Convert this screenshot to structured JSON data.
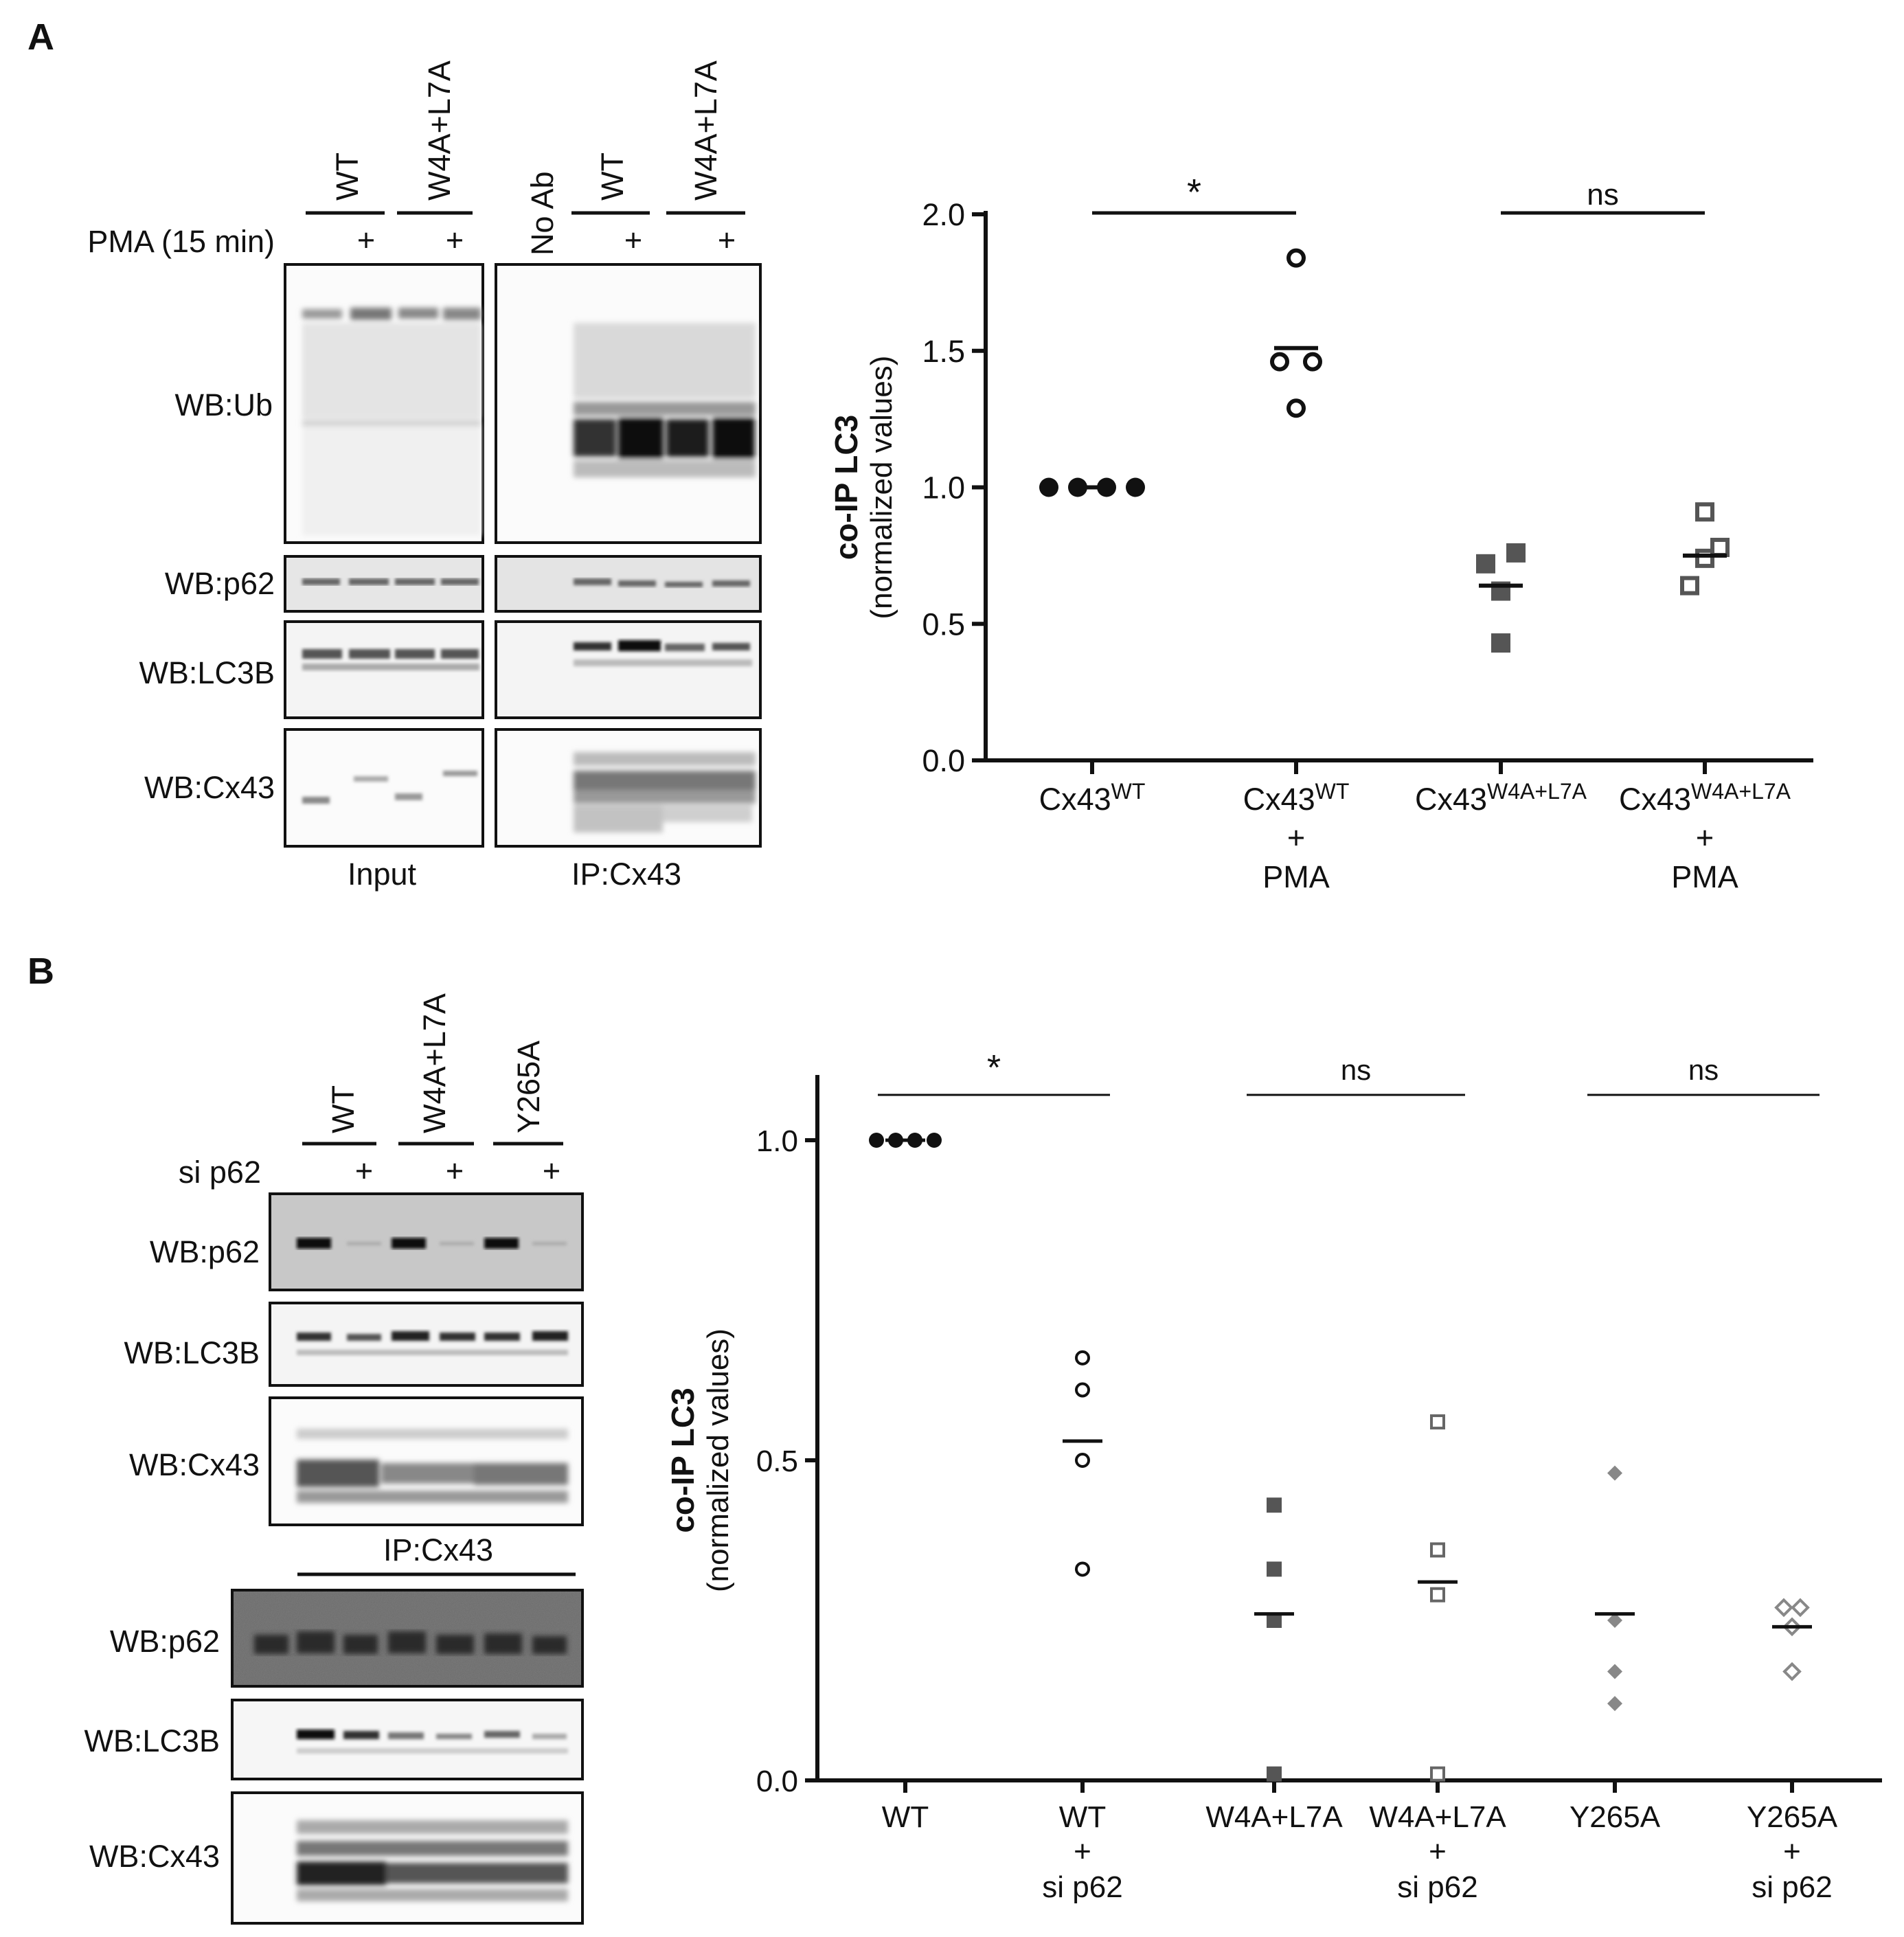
{
  "panelA": {
    "letter": "A",
    "blot": {
      "lanes": [
        "WT",
        "W4A+L7A",
        "No Ab",
        "WT",
        "W4A+L7A"
      ],
      "treatment": "PMA (15 min)",
      "plus": "+",
      "rows": [
        "WB:Ub",
        "WB:p62",
        "WB:LC3B",
        "WB:Cx43"
      ],
      "bottom": [
        "Input",
        "IP:Cx43"
      ]
    },
    "chart_data": {
      "type": "scatter",
      "ylabel": "co-IP LC3",
      "ylabel_sub": "(normalized values)",
      "ylim": [
        0,
        2.0
      ],
      "yticks": [
        "0.0",
        "0.5",
        "1.0",
        "1.5",
        "2.0"
      ],
      "categories": [
        {
          "base": "Cx43",
          "sup": "WT",
          "l2": "",
          "l3": ""
        },
        {
          "base": "Cx43",
          "sup": "WT",
          "l2": "+",
          "l3": "PMA"
        },
        {
          "base": "Cx43",
          "sup": "W4A+L7A",
          "l2": "",
          "l3": ""
        },
        {
          "base": "Cx43",
          "sup": "W4A+L7A",
          "l2": "+",
          "l3": "PMA"
        }
      ],
      "series": [
        {
          "values": [
            1.0,
            1.0,
            1.0,
            1.0
          ],
          "mean": 1.0,
          "marker": "filled-circle",
          "color": "#111111"
        },
        {
          "values": [
            1.84,
            1.46,
            1.46,
            1.29
          ],
          "mean": 1.51,
          "marker": "open-circle",
          "color": "#111111"
        },
        {
          "values": [
            0.76,
            0.72,
            0.62,
            0.43
          ],
          "mean": 0.64,
          "marker": "filled-square",
          "color": "#555555"
        },
        {
          "values": [
            0.91,
            0.78,
            0.74,
            0.64
          ],
          "mean": 0.75,
          "marker": "open-square",
          "color": "#555555"
        }
      ],
      "significance": [
        {
          "from": 0,
          "to": 1,
          "label": "*"
        },
        {
          "from": 2,
          "to": 3,
          "label": "ns"
        }
      ]
    }
  },
  "panelB": {
    "letter": "B",
    "blot": {
      "lanes": [
        "WT",
        "W4A+L7A",
        "Y265A"
      ],
      "treatment": "si p62",
      "plus": "+",
      "rows_top": [
        "WB:p62",
        "WB:LC3B",
        "WB:Cx43"
      ],
      "ip_label": "IP:Cx43",
      "rows_bottom": [
        "WB:p62",
        "WB:LC3B",
        "WB:Cx43"
      ]
    },
    "chart_data": {
      "type": "scatter",
      "ylabel": "co-IP LC3",
      "ylabel_sub": "(normalized values)",
      "ylim": [
        0,
        1.0
      ],
      "yticks": [
        "0.0",
        "0.5",
        "1.0"
      ],
      "categories": [
        {
          "l1": "WT",
          "l2": "",
          "l3": ""
        },
        {
          "l1": "WT",
          "l2": "+",
          "l3": "si p62"
        },
        {
          "l1": "W4A+L7A",
          "l2": "",
          "l3": ""
        },
        {
          "l1": "W4A+L7A",
          "l2": "+",
          "l3": "si p62"
        },
        {
          "l1": "Y265A",
          "l2": "",
          "l3": ""
        },
        {
          "l1": "Y265A",
          "l2": "+",
          "l3": "si p62"
        }
      ],
      "series": [
        {
          "values": [
            1.0,
            1.0,
            1.0,
            1.0
          ],
          "mean": 1.0,
          "marker": "filled-circle",
          "color": "#111111"
        },
        {
          "values": [
            0.66,
            0.61,
            0.5,
            0.33
          ],
          "mean": 0.53,
          "marker": "open-circle",
          "color": "#111111"
        },
        {
          "values": [
            0.43,
            0.33,
            0.25,
            0.01
          ],
          "mean": 0.26,
          "marker": "filled-square",
          "color": "#555555"
        },
        {
          "values": [
            0.56,
            0.36,
            0.29,
            0.01
          ],
          "mean": 0.31,
          "marker": "open-square",
          "color": "#666666"
        },
        {
          "values": [
            0.48,
            0.25,
            0.17,
            0.12
          ],
          "mean": 0.26,
          "marker": "filled-diamond",
          "color": "#888888"
        },
        {
          "values": [
            0.27,
            0.27,
            0.24,
            0.17
          ],
          "mean": 0.24,
          "marker": "open-diamond",
          "color": "#888888"
        }
      ],
      "significance": [
        {
          "from": 0,
          "to": 1,
          "label": "*"
        },
        {
          "from": 2,
          "to": 3,
          "label": "ns"
        },
        {
          "from": 4,
          "to": 5,
          "label": "ns"
        }
      ]
    }
  }
}
